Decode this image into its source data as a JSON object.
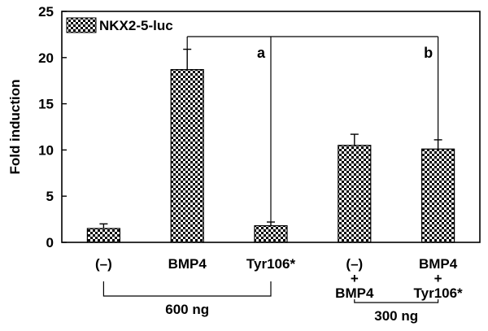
{
  "chart_data": {
    "type": "bar",
    "ylabel": "Fold induction",
    "xlabel": "",
    "ylim": [
      0,
      25
    ],
    "yticks": [
      0,
      5,
      10,
      15,
      20,
      25
    ],
    "categories": [
      {
        "lines": [
          "(–)"
        ]
      },
      {
        "lines": [
          "BMP4"
        ]
      },
      {
        "lines": [
          "Tyr106*"
        ]
      },
      {
        "lines": [
          "(–)",
          "+",
          "BMP4"
        ]
      },
      {
        "lines": [
          "BMP4",
          "+",
          "Tyr106*"
        ]
      }
    ],
    "series": [
      {
        "name": "NKX2-5-luc",
        "values": [
          1.5,
          18.7,
          1.8,
          10.5,
          10.1
        ],
        "errors": [
          0.5,
          2.2,
          0.4,
          1.2,
          1.0
        ]
      }
    ],
    "legend_position": "top-left",
    "comparisons": [
      {
        "label": "a",
        "from": 1,
        "to": 2
      },
      {
        "label": "b",
        "from": 1,
        "to": 4
      }
    ],
    "group_brackets": [
      {
        "label": "600 ng",
        "from": 0,
        "to": 2
      },
      {
        "label": "300 ng",
        "from": 3,
        "to": 4
      }
    ]
  }
}
